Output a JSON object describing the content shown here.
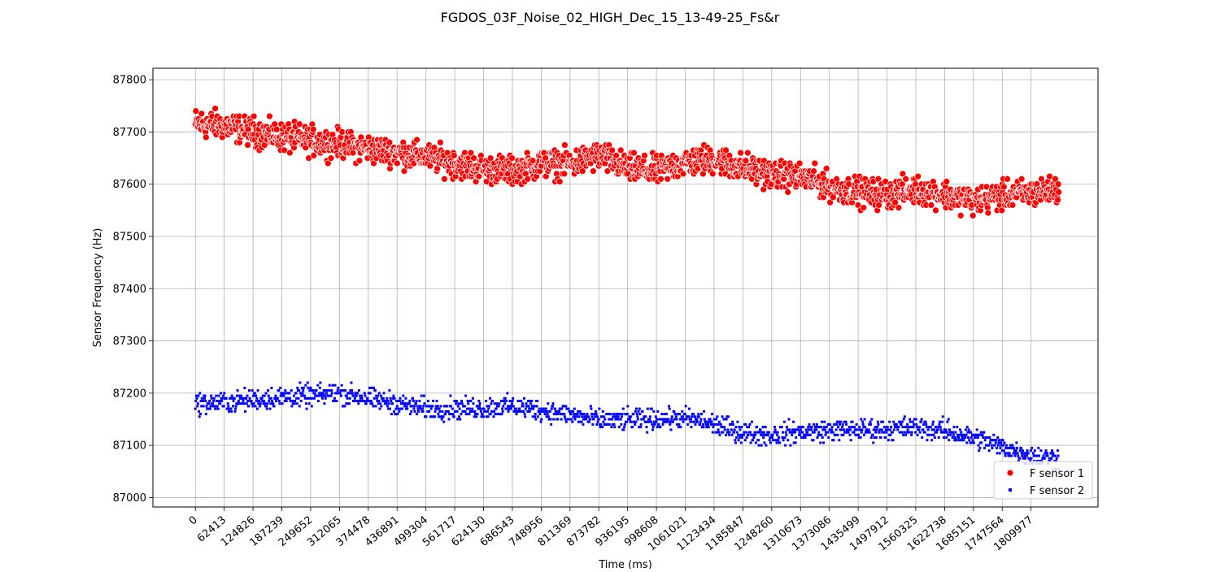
{
  "chart_data": {
    "type": "scatter",
    "title": "FGDOS_03F_Noise_02_HIGH_Dec_15_13-49-25_Fs&r",
    "xlabel": "Time (ms)",
    "ylabel": "Sensor Frequency (Hz)",
    "xlim": [
      -92000,
      1955000
    ],
    "ylim": [
      86982,
      87822
    ],
    "x_ticks": [
      0,
      62413,
      124826,
      187239,
      249652,
      312065,
      374478,
      436891,
      499304,
      561717,
      624130,
      686543,
      748956,
      811369,
      873782,
      936195,
      998608,
      1061021,
      1123434,
      1185847,
      1248260,
      1310673,
      1373086,
      1435499,
      1497912,
      1560325,
      1622738,
      1685151,
      1747564,
      1809977
    ],
    "x_tick_labels": [
      "0",
      "62413",
      "124826",
      "187239",
      "249652",
      "312065",
      "374478",
      "436891",
      "499304",
      "561717",
      "624130",
      "686543",
      "748956",
      "811369",
      "873782",
      "936195",
      "998608",
      "1061021",
      "1123434",
      "1185847",
      "1248260",
      "1310673",
      "1373086",
      "1435499",
      "1497912",
      "1560325",
      "1622738",
      "1685151",
      "1747564",
      "1809977"
    ],
    "y_ticks": [
      87000,
      87100,
      87200,
      87300,
      87400,
      87500,
      87600,
      87700,
      87800
    ],
    "y_tick_labels": [
      "87000",
      "87100",
      "87200",
      "87300",
      "87400",
      "87500",
      "87600",
      "87700",
      "87800"
    ],
    "grid": true,
    "legend_position": "bottom-right",
    "x_end": 1870000,
    "series": [
      {
        "name": "F sensor 1",
        "color": "#ff0000",
        "marker": "circle",
        "x": [
          0,
          62413,
          124826,
          187239,
          249652,
          312065,
          374478,
          436891,
          499304,
          561717,
          624130,
          686543,
          748956,
          811369,
          873782,
          936195,
          998608,
          1061021,
          1123434,
          1185847,
          1248260,
          1310673,
          1373086,
          1435499,
          1497912,
          1560325,
          1622738,
          1685151,
          1747564,
          1809977,
          1870000
        ],
        "y": [
          87715,
          87712,
          87700,
          87690,
          87683,
          87677,
          87668,
          87660,
          87652,
          87640,
          87630,
          87625,
          87640,
          87638,
          87655,
          87630,
          87625,
          87642,
          87648,
          87632,
          87618,
          87615,
          87595,
          87585,
          87580,
          87590,
          87580,
          87568,
          87578,
          87584,
          87590
        ],
        "spread": 40
      },
      {
        "name": "F sensor 2",
        "color": "#0000ff",
        "marker": "square",
        "x": [
          0,
          62413,
          124826,
          187239,
          249652,
          312065,
          374478,
          436891,
          499304,
          561717,
          624130,
          686543,
          748956,
          811369,
          873782,
          936195,
          998608,
          1061021,
          1123434,
          1185847,
          1248260,
          1310673,
          1373086,
          1435499,
          1497912,
          1560325,
          1622738,
          1685151,
          1747564,
          1809977,
          1870000
        ],
        "y": [
          87180,
          87182,
          87188,
          87192,
          87195,
          87200,
          87190,
          87180,
          87170,
          87170,
          87172,
          87175,
          87168,
          87158,
          87148,
          87148,
          87150,
          87152,
          87140,
          87125,
          87120,
          87125,
          87128,
          87130,
          87130,
          87135,
          87128,
          87115,
          87098,
          87080,
          87075
        ],
        "spread": 30
      }
    ]
  }
}
